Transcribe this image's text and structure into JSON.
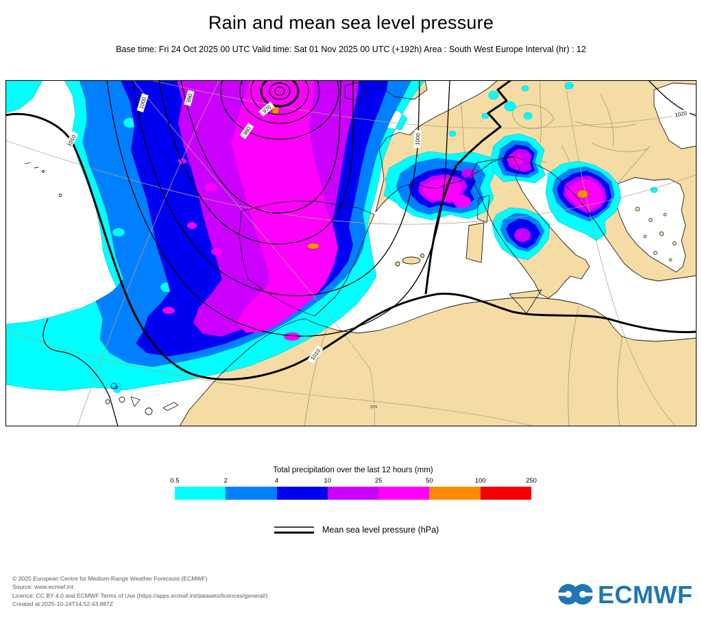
{
  "header": {
    "title": "Rain and mean sea level pressure",
    "subtitle": "Base time: Fri 24 Oct 2025 00 UTC Valid time: Sat 01 Nov 2025 00 UTC (+192h) Area : South West Europe Interval (hr) : 12"
  },
  "map": {
    "isobar_labels": [
      {
        "text": "970"
      },
      {
        "text": "980"
      },
      {
        "text": "990"
      },
      {
        "text": "1000"
      },
      {
        "text": "1000"
      },
      {
        "text": "1010"
      },
      {
        "text": "1010"
      },
      {
        "text": "1020"
      }
    ],
    "graticule_label": "30N",
    "colors": {
      "land": "#F5DCA5",
      "sea": "#FFFFFF",
      "coast": "#1a1a1a",
      "graticule": "#b3a47e",
      "contour": "#000000"
    }
  },
  "legend": {
    "precip": {
      "title": "Total precipitation over the last 12 hours (mm)",
      "thresholds": [
        "0.5",
        "2",
        "4",
        "10",
        "25",
        "50",
        "100",
        "250"
      ],
      "colors": [
        "#00FFFF",
        "#0080FF",
        "#0000F0",
        "#CC00FF",
        "#FF00FF",
        "#FF8C00",
        "#F40000"
      ]
    },
    "mslp": {
      "label": "Mean sea level pressure (hPa)"
    }
  },
  "footer": {
    "lines": [
      "© 2025 European Centre for Medium-Range Weather Forecasts (ECMWF)",
      "Source: www.ecmwf.int",
      "Licence: CC BY 4.0 and ECMWF Terms of Use (https://apps.ecmwf.int/datasets/licences/general/)",
      "Created at 2025-10-24T14:52:43.887Z"
    ],
    "logo_text": "ECMWF",
    "logo_color": "#1e76b4"
  }
}
